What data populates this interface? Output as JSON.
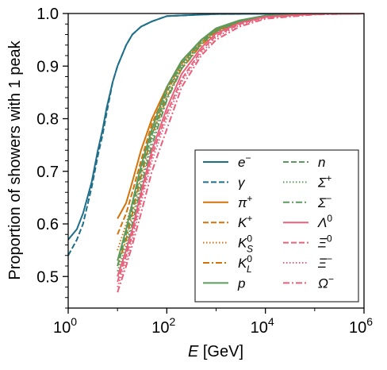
{
  "chart_data": {
    "type": "line",
    "title": "",
    "xlabel": "E [GeV]",
    "ylabel": "Proportion of showers with 1 peak",
    "xscale": "log",
    "xlim": [
      1,
      1000000
    ],
    "ylim": [
      0.44,
      1.0
    ],
    "x_tick_labels": [
      {
        "value": 1,
        "base": "10",
        "exp": "0"
      },
      {
        "value": 100,
        "base": "10",
        "exp": "2"
      },
      {
        "value": 10000,
        "base": "10",
        "exp": "4"
      },
      {
        "value": 1000000,
        "base": "10",
        "exp": "6"
      }
    ],
    "y_ticks": [
      0.5,
      0.6,
      0.7,
      0.8,
      0.9,
      1.0
    ],
    "y_tick_labels": [
      "0.5",
      "0.6",
      "0.7",
      "0.8",
      "0.9",
      "1.0"
    ],
    "grid": false,
    "legend_position": "lower-right",
    "series": [
      {
        "name": "e⁻",
        "color": "#1f6f8b",
        "dash": "solid",
        "x": [
          1,
          1.5,
          2,
          3,
          4,
          5,
          6,
          8,
          10,
          15,
          20,
          30,
          50,
          100,
          1000,
          1000000
        ],
        "y": [
          0.57,
          0.59,
          0.62,
          0.68,
          0.74,
          0.78,
          0.82,
          0.87,
          0.9,
          0.94,
          0.96,
          0.975,
          0.985,
          0.995,
          0.999,
          1.0
        ]
      },
      {
        "name": "γ",
        "color": "#1f6f8b",
        "dash": "dashed",
        "x": [
          1,
          1.5,
          2,
          3,
          4,
          5,
          6,
          8,
          10,
          15,
          20,
          30,
          50,
          100,
          1000,
          1000000
        ],
        "y": [
          0.54,
          0.57,
          0.6,
          0.67,
          0.73,
          0.77,
          0.81,
          0.87,
          0.9,
          0.94,
          0.96,
          0.975,
          0.985,
          0.995,
          0.999,
          1.0
        ]
      },
      {
        "name": "π⁺",
        "color": "#d4720a",
        "dash": "solid",
        "x": [
          10,
          15,
          20,
          30,
          50,
          100,
          200,
          500,
          1000,
          3000,
          10000,
          100000,
          1000000
        ],
        "y": [
          0.61,
          0.64,
          0.68,
          0.74,
          0.8,
          0.86,
          0.91,
          0.95,
          0.97,
          0.985,
          0.995,
          0.999,
          1.0
        ]
      },
      {
        "name": "K⁺",
        "color": "#d4720a",
        "dash": "dashed",
        "x": [
          10,
          15,
          20,
          30,
          50,
          100,
          200,
          500,
          1000,
          3000,
          10000,
          100000,
          1000000
        ],
        "y": [
          0.58,
          0.62,
          0.66,
          0.72,
          0.79,
          0.855,
          0.905,
          0.945,
          0.968,
          0.985,
          0.995,
          0.999,
          1.0
        ]
      },
      {
        "name": "K⁰S",
        "color": "#d4720a",
        "dash": "dotted",
        "x": [
          10,
          15,
          20,
          30,
          50,
          100,
          200,
          500,
          1000,
          3000,
          10000,
          100000,
          1000000
        ],
        "y": [
          0.55,
          0.6,
          0.64,
          0.71,
          0.78,
          0.85,
          0.9,
          0.945,
          0.967,
          0.984,
          0.995,
          0.999,
          1.0
        ]
      },
      {
        "name": "K⁰L",
        "color": "#d4720a",
        "dash": "dashdot",
        "x": [
          10,
          15,
          20,
          30,
          50,
          100,
          200,
          500,
          1000,
          3000,
          10000,
          100000,
          1000000
        ],
        "y": [
          0.52,
          0.57,
          0.62,
          0.69,
          0.77,
          0.84,
          0.895,
          0.94,
          0.965,
          0.983,
          0.994,
          0.999,
          1.0
        ]
      },
      {
        "name": "p",
        "color": "#5c9a5c",
        "dash": "solid",
        "x": [
          10,
          15,
          20,
          30,
          50,
          100,
          200,
          500,
          1000,
          3000,
          10000,
          100000,
          1000000
        ],
        "y": [
          0.53,
          0.59,
          0.64,
          0.71,
          0.78,
          0.86,
          0.91,
          0.95,
          0.972,
          0.987,
          0.996,
          0.999,
          1.0
        ]
      },
      {
        "name": "n",
        "color": "#5c9a5c",
        "dash": "dashed",
        "x": [
          10,
          15,
          20,
          30,
          50,
          100,
          200,
          500,
          1000,
          3000,
          10000,
          100000,
          1000000
        ],
        "y": [
          0.52,
          0.58,
          0.63,
          0.7,
          0.77,
          0.85,
          0.905,
          0.948,
          0.97,
          0.986,
          0.995,
          0.999,
          1.0
        ]
      },
      {
        "name": "Σ⁺",
        "color": "#5c9a5c",
        "dash": "dotted",
        "x": [
          10,
          15,
          20,
          30,
          50,
          100,
          200,
          500,
          1000,
          3000,
          10000,
          100000,
          1000000
        ],
        "y": [
          0.51,
          0.56,
          0.61,
          0.68,
          0.76,
          0.84,
          0.9,
          0.945,
          0.968,
          0.985,
          0.995,
          0.999,
          1.0
        ]
      },
      {
        "name": "Σ⁻",
        "color": "#5c9a5c",
        "dash": "dashdot",
        "x": [
          10,
          15,
          20,
          30,
          50,
          100,
          200,
          500,
          1000,
          3000,
          10000,
          100000,
          1000000
        ],
        "y": [
          0.5,
          0.55,
          0.6,
          0.67,
          0.75,
          0.835,
          0.895,
          0.942,
          0.966,
          0.984,
          0.994,
          0.999,
          1.0
        ]
      },
      {
        "name": "Λ⁰",
        "color": "#e8607a",
        "dash": "solid",
        "x": [
          10,
          15,
          20,
          30,
          50,
          100,
          200,
          500,
          1000,
          3000,
          10000,
          100000,
          1000000
        ],
        "y": [
          0.5,
          0.55,
          0.59,
          0.66,
          0.74,
          0.82,
          0.885,
          0.935,
          0.962,
          0.982,
          0.994,
          0.999,
          1.0
        ]
      },
      {
        "name": "Ξ⁰",
        "color": "#e8607a",
        "dash": "dashed",
        "x": [
          10,
          15,
          20,
          30,
          50,
          100,
          200,
          500,
          1000,
          3000,
          10000,
          100000,
          1000000
        ],
        "y": [
          0.49,
          0.54,
          0.58,
          0.65,
          0.73,
          0.81,
          0.875,
          0.93,
          0.958,
          0.98,
          0.993,
          0.999,
          1.0
        ]
      },
      {
        "name": "Ξ⁻",
        "color": "#e8607a",
        "dash": "dotted",
        "x": [
          10,
          15,
          20,
          30,
          50,
          100,
          200,
          500,
          1000,
          3000,
          10000,
          100000,
          1000000
        ],
        "y": [
          0.48,
          0.53,
          0.57,
          0.64,
          0.72,
          0.8,
          0.87,
          0.925,
          0.955,
          0.978,
          0.992,
          0.999,
          1.0
        ]
      },
      {
        "name": "Ω⁻",
        "color": "#e8607a",
        "dash": "dashdot",
        "x": [
          10,
          15,
          20,
          30,
          50,
          100,
          200,
          500,
          1000,
          3000,
          10000,
          100000,
          1000000
        ],
        "y": [
          0.47,
          0.52,
          0.56,
          0.62,
          0.7,
          0.78,
          0.86,
          0.92,
          0.95,
          0.975,
          0.99,
          0.998,
          1.0
        ]
      }
    ]
  }
}
